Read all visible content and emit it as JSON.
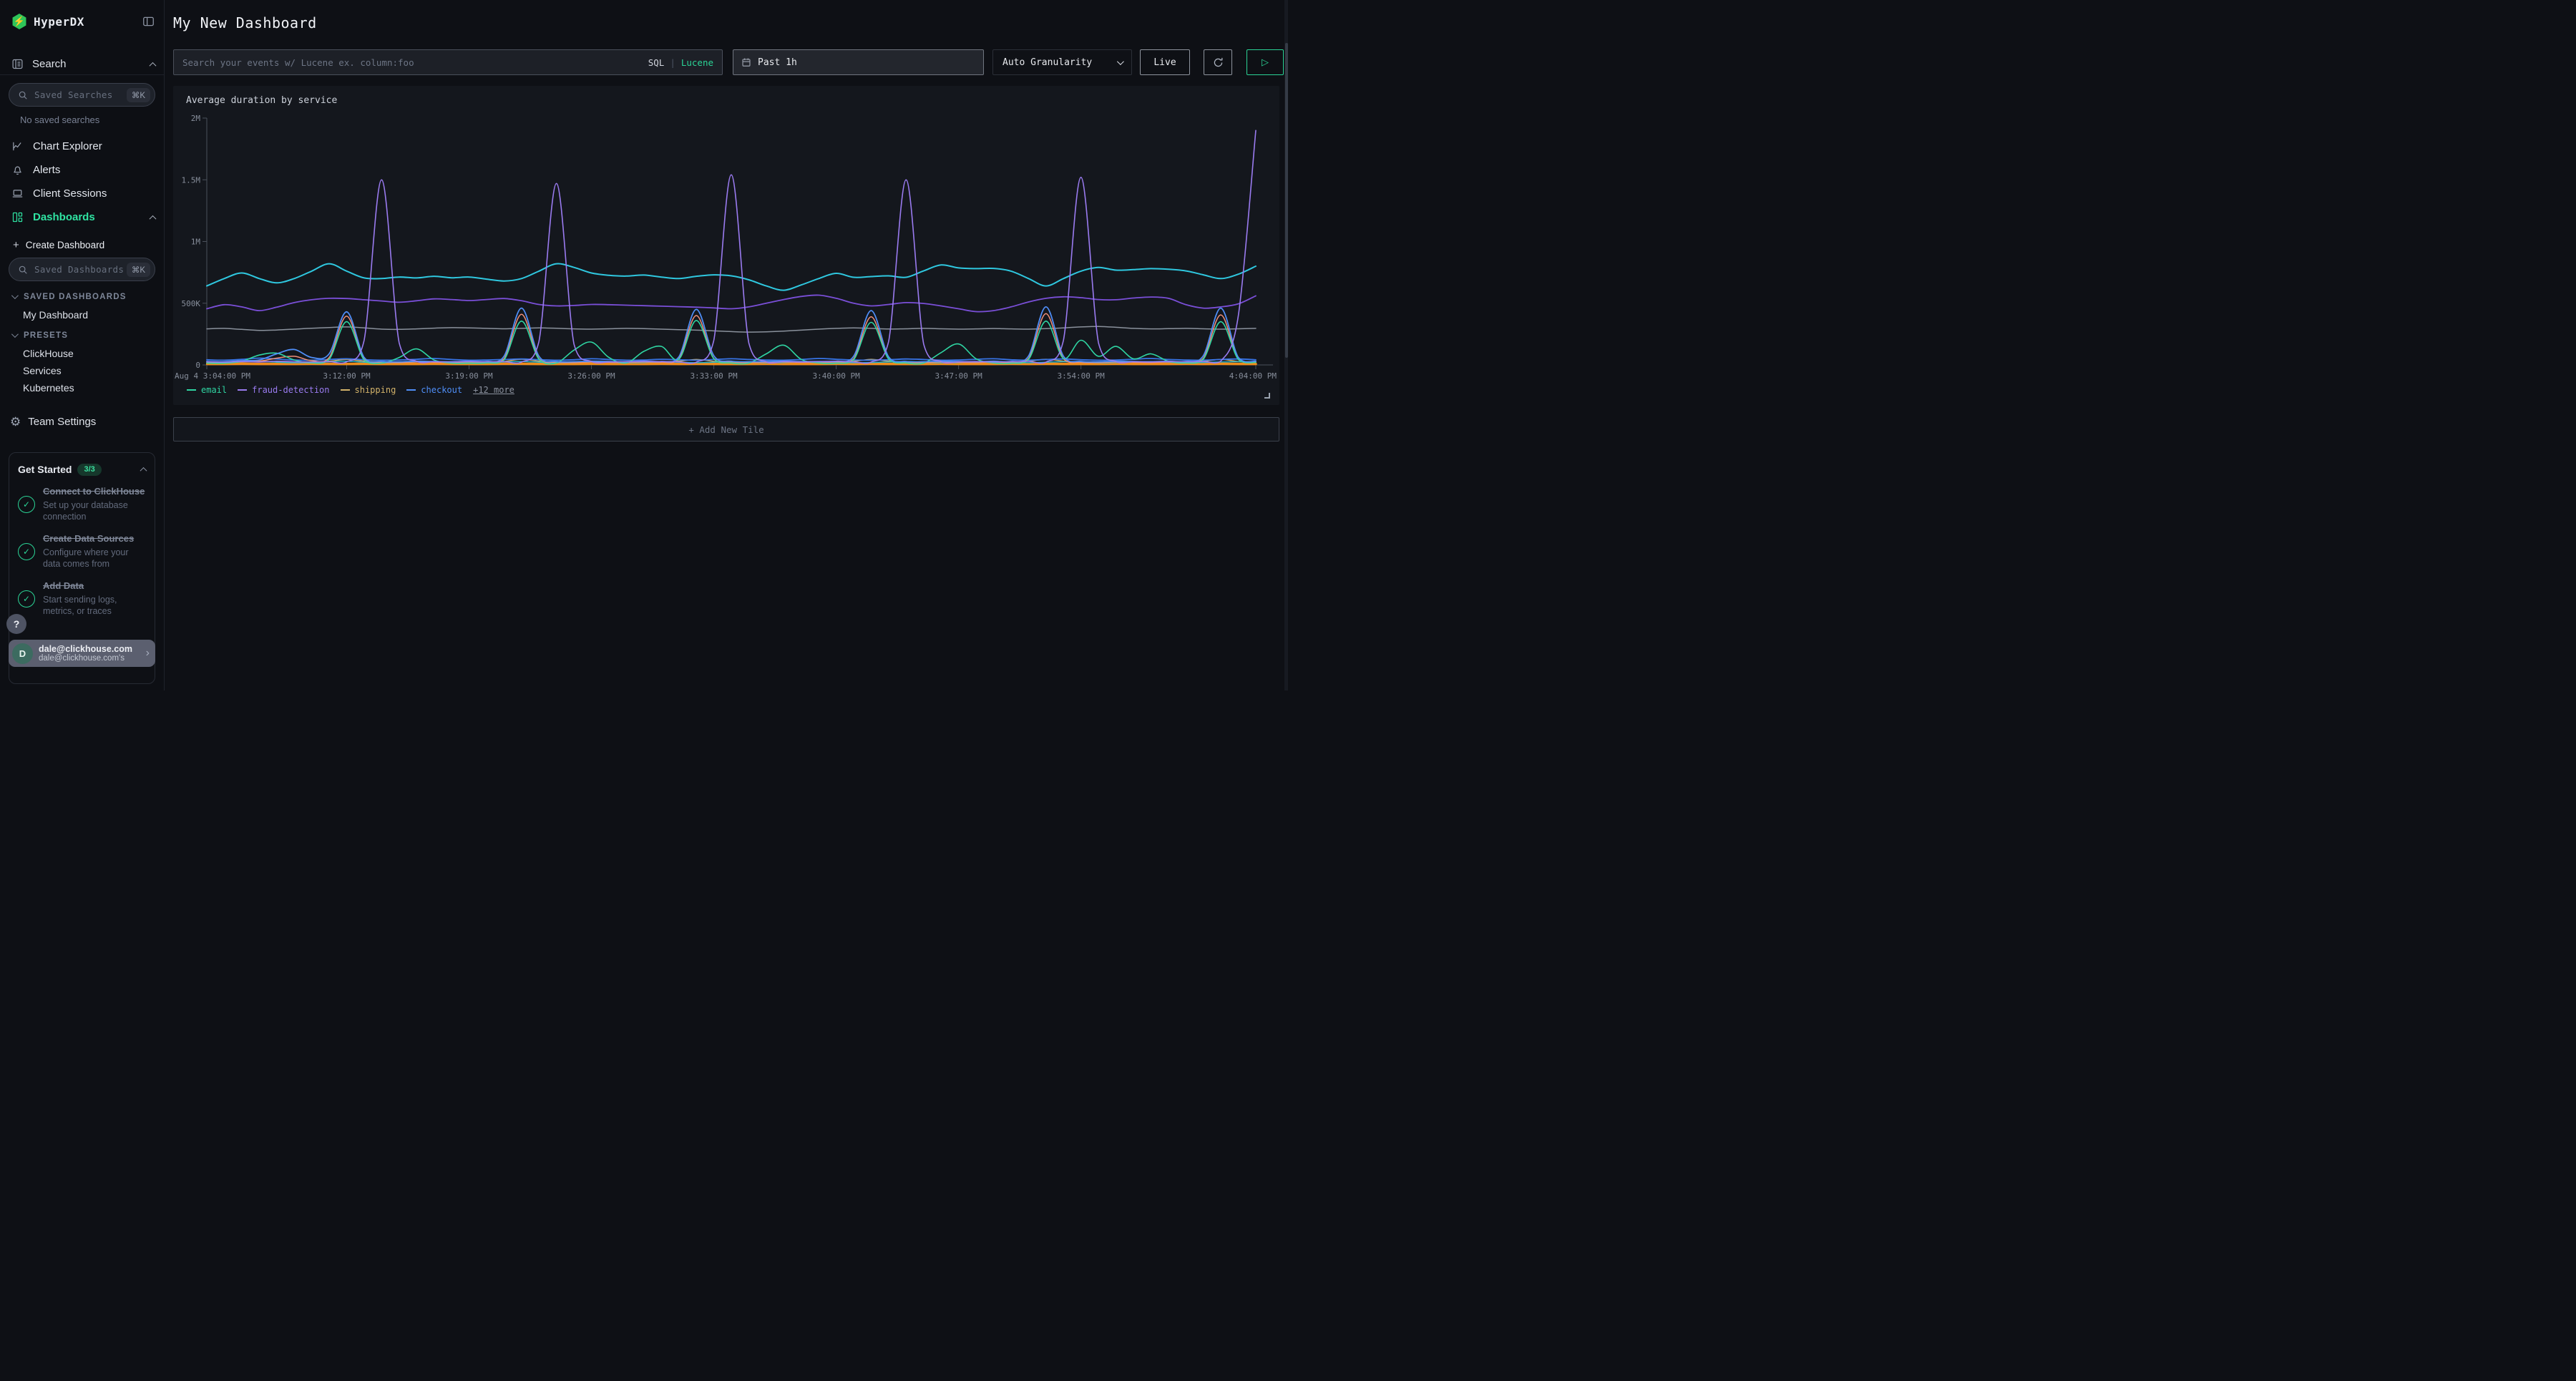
{
  "app": {
    "name": "HyperDX"
  },
  "colors": {
    "accent_green": "#2bd496",
    "logo_green": "#2fc559",
    "badge_green": "#3bdf9f"
  },
  "sidebar": {
    "logo_text": "HyperDX",
    "search_section": {
      "label": "Search"
    },
    "saved_searches": {
      "placeholder": "Saved Searches",
      "shortcut": "⌘K"
    },
    "no_saved_searches": "No saved searches",
    "nav": [
      {
        "label": "Chart Explorer",
        "icon": "line-chart",
        "active": false
      },
      {
        "label": "Alerts",
        "icon": "bell",
        "active": false
      },
      {
        "label": "Client Sessions",
        "icon": "laptop",
        "active": false
      },
      {
        "label": "Dashboards",
        "icon": "layout-grid",
        "active": true,
        "expanded": true
      }
    ],
    "create_dashboard": {
      "plus": "+",
      "label": "Create Dashboard"
    },
    "saved_dashboards_input": {
      "placeholder": "Saved Dashboards",
      "shortcut": "⌘K"
    },
    "saved_dashboards_header": "SAVED DASHBOARDS",
    "saved_dashboards": [
      "My Dashboard"
    ],
    "presets_header": "PRESETS",
    "presets": [
      "ClickHouse",
      "Services",
      "Kubernetes"
    ],
    "team_settings": "Team Settings",
    "get_started": {
      "title": "Get Started",
      "badge": "3/3",
      "items": [
        {
          "title": "Connect to ClickHouse",
          "desc": "Set up your database connection"
        },
        {
          "title": "Create Data Sources",
          "desc": "Configure where your data comes from"
        },
        {
          "title": "Add Data",
          "desc": "Start sending logs, metrics, or traces"
        }
      ],
      "overflow_fragment": "Set up."
    },
    "help_label": "?",
    "user": {
      "initial": "D",
      "name": "dale@clickhouse.com",
      "sub": "dale@clickhouse.com's"
    }
  },
  "header": {
    "title": "My New Dashboard",
    "search_placeholder": "Search your events w/ Lucene ex. column:foo",
    "lang_sql": "SQL",
    "lang_sep": "|",
    "lang_lucene": "Lucene",
    "time_range": "Past 1h",
    "granularity": "Auto Granularity",
    "live_label": "Live",
    "play_glyph": "▷"
  },
  "tile": {
    "title": "Average duration by service",
    "legend_more": "+12 more"
  },
  "add_tile_label": "+ Add New Tile",
  "chart_data": {
    "type": "line",
    "title": "Average duration by service",
    "xlabel": "",
    "ylabel": "",
    "ylim": [
      0,
      2000000
    ],
    "grid": false,
    "legend_position": "bottom-left",
    "values_scale": "thousands",
    "x_minutes_range": [
      0,
      60
    ],
    "x_ticks": [
      {
        "m": 0,
        "label": "Aug 4 3:04:00 PM"
      },
      {
        "m": 8,
        "label": "3:12:00 PM"
      },
      {
        "m": 15,
        "label": "3:19:00 PM"
      },
      {
        "m": 22,
        "label": "3:26:00 PM"
      },
      {
        "m": 29,
        "label": "3:33:00 PM"
      },
      {
        "m": 36,
        "label": "3:40:00 PM"
      },
      {
        "m": 43,
        "label": "3:47:00 PM"
      },
      {
        "m": 50,
        "label": "3:54:00 PM"
      },
      {
        "m": 60,
        "label": "4:04:00 PM"
      }
    ],
    "y_ticks": [
      {
        "v": 0,
        "label": "0"
      },
      {
        "v": 500,
        "label": "500K"
      },
      {
        "v": 1000,
        "label": "1M"
      },
      {
        "v": 1500,
        "label": "1.5M"
      },
      {
        "v": 2000,
        "label": "2M"
      }
    ],
    "legend": [
      {
        "label": "email",
        "color": "#2fd6a3"
      },
      {
        "label": "fraud-detection",
        "color": "#9a7bf0"
      },
      {
        "label": "shipping",
        "color": "#d3b36a"
      },
      {
        "label": "checkout",
        "color": "#4f8ef7"
      }
    ],
    "series": [
      {
        "id": "orange-baseline",
        "label": "",
        "color": "#f08c1a",
        "width": 3.5,
        "values": [
          8,
          8,
          9,
          8,
          8,
          8,
          9,
          8,
          8,
          9,
          8,
          8,
          8,
          9,
          8,
          8,
          8,
          9,
          9,
          8,
          8,
          8,
          9,
          8,
          8,
          8,
          9,
          8,
          9,
          8,
          8,
          8,
          9,
          8,
          8,
          8,
          9,
          8,
          9,
          8,
          8,
          8,
          9,
          8,
          8,
          8,
          9,
          8,
          9,
          8,
          8,
          8,
          9,
          8,
          8,
          8,
          9,
          8,
          9,
          8,
          8
        ]
      },
      {
        "id": "shipping",
        "label": "shipping",
        "color": "#d3b36a",
        "width": 1.5,
        "values": [
          25,
          22,
          26,
          30,
          25,
          22,
          24,
          30,
          45,
          30,
          24,
          22,
          25,
          27,
          24,
          22,
          24,
          28,
          46,
          30,
          24,
          22,
          25,
          26,
          23,
          24,
          25,
          30,
          44,
          29,
          24,
          22,
          25,
          27,
          24,
          23,
          25,
          29,
          45,
          30,
          24,
          22,
          25,
          26,
          24,
          23,
          25,
          30,
          46,
          31,
          25,
          22,
          24,
          26,
          23,
          24,
          25,
          29,
          45,
          28,
          26
        ]
      },
      {
        "id": "cyan-low",
        "label": "",
        "color": "#27b3c9",
        "width": 1.5,
        "values": [
          22,
          20,
          24,
          28,
          22,
          18,
          20,
          25,
          30,
          22,
          18,
          20,
          24,
          26,
          22,
          18,
          20,
          24,
          28,
          22,
          18,
          20,
          24,
          22,
          18,
          20,
          24,
          22,
          18,
          22,
          26,
          22,
          18,
          20,
          24,
          26,
          22,
          18,
          20,
          24,
          28,
          22,
          18,
          20,
          24,
          26,
          22,
          18,
          22,
          26,
          22,
          18,
          20,
          24,
          26,
          22,
          18,
          20,
          24,
          26,
          22
        ]
      },
      {
        "id": "blue-low",
        "label": "",
        "color": "#3875e8",
        "width": 1.8,
        "values": [
          42,
          38,
          45,
          55,
          48,
          40,
          38,
          44,
          50,
          42,
          38,
          40,
          46,
          52,
          44,
          38,
          40,
          44,
          48,
          42,
          38,
          42,
          50,
          44,
          38,
          40,
          46,
          42,
          38,
          44,
          50,
          44,
          40,
          38,
          44,
          52,
          46,
          40,
          38,
          42,
          48,
          44,
          38,
          40,
          46,
          50,
          42,
          38,
          44,
          48,
          42,
          38,
          40,
          46,
          52,
          44,
          40,
          38,
          44,
          48,
          42
        ]
      },
      {
        "id": "gray",
        "label": "",
        "color": "#8a919c",
        "width": 1.5,
        "values": [
          292,
          296,
          288,
          280,
          283,
          290,
          297,
          303,
          308,
          300,
          290,
          288,
          292,
          298,
          302,
          300,
          296,
          293,
          296,
          300,
          297,
          292,
          290,
          293,
          296,
          294,
          290,
          286,
          282,
          276,
          270,
          266,
          268,
          274,
          282,
          290,
          296,
          300,
          296,
          291,
          293,
          296,
          293,
          290,
          292,
          295,
          292,
          290,
          294,
          300,
          308,
          312,
          305,
          296,
          292,
          294,
          296,
          293,
          290,
          293,
          296
        ]
      },
      {
        "id": "salmon",
        "label": "",
        "color": "#f0907a",
        "width": 1.5,
        "values": [
          22,
          20,
          25,
          30,
          55,
          70,
          35,
          60,
          395,
          45,
          22,
          20,
          24,
          22,
          20,
          24,
          22,
          50,
          410,
          50,
          22,
          20,
          24,
          22,
          20,
          24,
          22,
          48,
          400,
          52,
          24,
          20,
          22,
          24,
          21,
          22,
          24,
          50,
          390,
          46,
          22,
          20,
          24,
          22,
          20,
          24,
          22,
          52,
          415,
          50,
          22,
          20,
          24,
          22,
          20,
          24,
          22,
          54,
          405,
          44,
          24
        ]
      },
      {
        "id": "email",
        "label": "email",
        "color": "#2fd6a3",
        "width": 1.6,
        "values": [
          15,
          14,
          30,
          80,
          95,
          40,
          16,
          45,
          350,
          40,
          15,
          60,
          130,
          40,
          15,
          14,
          16,
          40,
          355,
          45,
          16,
          120,
          185,
          60,
          16,
          110,
          150,
          45,
          360,
          50,
          16,
          15,
          90,
          160,
          45,
          16,
          14,
          42,
          345,
          48,
          16,
          15,
          100,
          170,
          50,
          16,
          14,
          44,
          355,
          52,
          200,
          70,
          150,
          50,
          90,
          30,
          16,
          46,
          350,
          45,
          20
        ]
      },
      {
        "id": "checkout",
        "label": "checkout",
        "color": "#4f8ef7",
        "width": 1.8,
        "values": [
          28,
          25,
          35,
          40,
          90,
          125,
          60,
          90,
          430,
          60,
          28,
          25,
          30,
          28,
          26,
          30,
          28,
          70,
          460,
          70,
          28,
          26,
          30,
          28,
          25,
          30,
          28,
          65,
          450,
          75,
          30,
          26,
          28,
          30,
          27,
          28,
          30,
          70,
          440,
          65,
          28,
          26,
          30,
          28,
          26,
          30,
          28,
          72,
          470,
          70,
          28,
          25,
          30,
          28,
          26,
          30,
          28,
          75,
          460,
          60,
          30
        ]
      },
      {
        "id": "purple-wavy",
        "label": "",
        "color": "#7a4fd8",
        "width": 1.8,
        "values": [
          455,
          488,
          470,
          440,
          468,
          505,
          528,
          540,
          538,
          528,
          518,
          508,
          520,
          535,
          530,
          522,
          530,
          538,
          520,
          490,
          478,
          482,
          490,
          488,
          484,
          480,
          476,
          472,
          468,
          462,
          455,
          470,
          500,
          530,
          555,
          565,
          540,
          500,
          478,
          490,
          505,
          498,
          478,
          455,
          432,
          440,
          470,
          510,
          540,
          552,
          545,
          530,
          528,
          542,
          550,
          540,
          488,
          460,
          470,
          495,
          560
        ]
      },
      {
        "id": "cyan-high",
        "label": "",
        "color": "#2fc8e0",
        "width": 2,
        "values": [
          640,
          700,
          745,
          700,
          665,
          700,
          760,
          820,
          760,
          705,
          700,
          712,
          705,
          718,
          706,
          712,
          695,
          680,
          700,
          760,
          820,
          790,
          745,
          726,
          720,
          728,
          712,
          700,
          718,
          730,
          722,
          690,
          640,
          605,
          648,
          700,
          742,
          710,
          716,
          722,
          710,
          762,
          810,
          786,
          780,
          782,
          760,
          700,
          640,
          700,
          760,
          790,
          768,
          772,
          780,
          775,
          762,
          730,
          700,
          735,
          800
        ]
      },
      {
        "id": "fraud-detection",
        "label": "fraud-detection",
        "color": "#9a7bf0",
        "width": 1.6,
        "values": [
          25,
          22,
          28,
          24,
          30,
          26,
          23,
          27,
          25,
          200,
          1500,
          180,
          30,
          26,
          24,
          28,
          25,
          27,
          23,
          190,
          1470,
          170,
          28,
          24,
          26,
          30,
          27,
          25,
          22,
          200,
          1540,
          180,
          26,
          28,
          24,
          27,
          30,
          25,
          23,
          190,
          1500,
          170,
          27,
          25,
          28,
          24,
          26,
          29,
          23,
          200,
          1520,
          180,
          28,
          26,
          24,
          27,
          25,
          28,
          30,
          400,
          1900
        ]
      }
    ]
  }
}
